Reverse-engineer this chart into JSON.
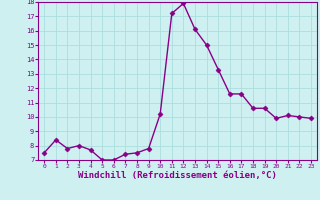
{
  "x": [
    0,
    1,
    2,
    3,
    4,
    5,
    6,
    7,
    8,
    9,
    10,
    11,
    12,
    13,
    14,
    15,
    16,
    17,
    18,
    19,
    20,
    21,
    22,
    23
  ],
  "y": [
    7.5,
    8.4,
    7.8,
    8.0,
    7.7,
    7.0,
    7.0,
    7.4,
    7.5,
    7.8,
    10.2,
    17.2,
    17.9,
    16.1,
    15.0,
    13.3,
    11.6,
    11.6,
    10.6,
    10.6,
    9.9,
    10.1,
    10.0,
    9.9
  ],
  "line_color": "#880088",
  "marker": "D",
  "marker_size": 2.5,
  "linewidth": 1.0,
  "xlim": [
    -0.5,
    23.5
  ],
  "ylim": [
    7,
    18
  ],
  "yticks": [
    7,
    8,
    9,
    10,
    11,
    12,
    13,
    14,
    15,
    16,
    17,
    18
  ],
  "xticks": [
    0,
    1,
    2,
    3,
    4,
    5,
    6,
    7,
    8,
    9,
    10,
    11,
    12,
    13,
    14,
    15,
    16,
    17,
    18,
    19,
    20,
    21,
    22,
    23
  ],
  "xlabel": "Windchill (Refroidissement éolien,°C)",
  "background_color": "#cff0f0",
  "grid_color": "#aadddd",
  "tick_color": "#880088",
  "label_color": "#880088",
  "xlabel_fontsize": 6.5
}
